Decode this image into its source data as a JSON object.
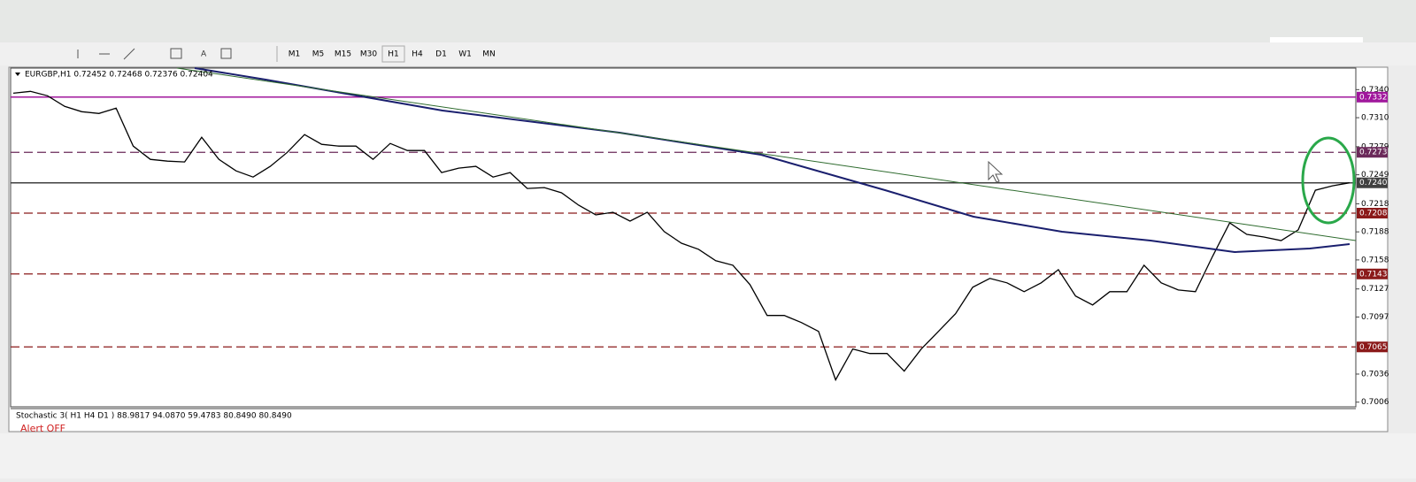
{
  "toolbar": {
    "timeframes": [
      "M1",
      "M5",
      "M15",
      "M30",
      "H1",
      "H4",
      "D1",
      "W1",
      "MN"
    ]
  },
  "chart_data": {
    "type": "line",
    "title": "EURGBP,H1  0.72452 0.72468 0.72376 0.72404",
    "color": "#000000",
    "values": [
      0.73362,
      0.73381,
      0.73334,
      0.73221,
      0.73164,
      0.73145,
      0.73202,
      0.72796,
      0.72655,
      0.72636,
      0.72627,
      0.72891,
      0.72655,
      0.72532,
      0.72466,
      0.7258,
      0.7273,
      0.72919,
      0.72815,
      0.72796,
      0.72796,
      0.72655,
      0.72825,
      0.72749,
      0.72749,
      0.72514,
      0.72561,
      0.7258,
      0.72466,
      0.72514,
      0.72344,
      0.72353,
      0.72297,
      0.72165,
      0.72061,
      0.72089,
      0.71995,
      0.72089,
      0.71882,
      0.71759,
      0.71693,
      0.71571,
      0.71523,
      0.71316,
      0.70986,
      0.70986,
      0.70911,
      0.70816,
      0.70298,
      0.70628,
      0.7058,
      0.7058,
      0.70392,
      0.70628,
      0.70816,
      0.71005,
      0.71288,
      0.71382,
      0.71335,
      0.71241,
      0.71335,
      0.71476,
      0.71194,
      0.71099,
      0.71241,
      0.71241,
      0.71523,
      0.71335,
      0.71259,
      0.71241,
      0.71618,
      0.71976,
      0.71853,
      0.71825,
      0.71787,
      0.71901,
      0.72325,
      0.72372,
      0.72404
    ],
    "ylim": [
      0.7001,
      0.7363
    ],
    "yticks": [
      {
        "value": 0.734,
        "label": "0.7340"
      },
      {
        "value": 0.731,
        "label": "0.7310"
      },
      0.7279,
      0.7249,
      0.7218,
      0.7188,
      0.7158,
      0.7127,
      0.7097,
      0.7036,
      0.7006
    ],
    "levels": [
      {
        "value": 0.7332,
        "color": "#a0179c",
        "dashed": false
      },
      {
        "value": 0.7273,
        "color": "#6b2a5a",
        "dashed": true
      },
      {
        "value": 0.72404,
        "label": "0.7240",
        "color": "#404040",
        "dashed": false
      },
      {
        "value": 0.7208,
        "color": "#8b1a1a",
        "dashed": true
      },
      {
        "value": 0.7143,
        "color": "#8b1a1a",
        "dashed": true
      },
      {
        "value": 0.7065,
        "color": "#8b1a1a",
        "dashed": true
      }
    ]
  },
  "indicator": {
    "title": "Stochastic 3( H1   H4   D1   ) 88.9817 94.0870 59.4783 80.8490 80.8490",
    "alert": "Alert OFF"
  }
}
